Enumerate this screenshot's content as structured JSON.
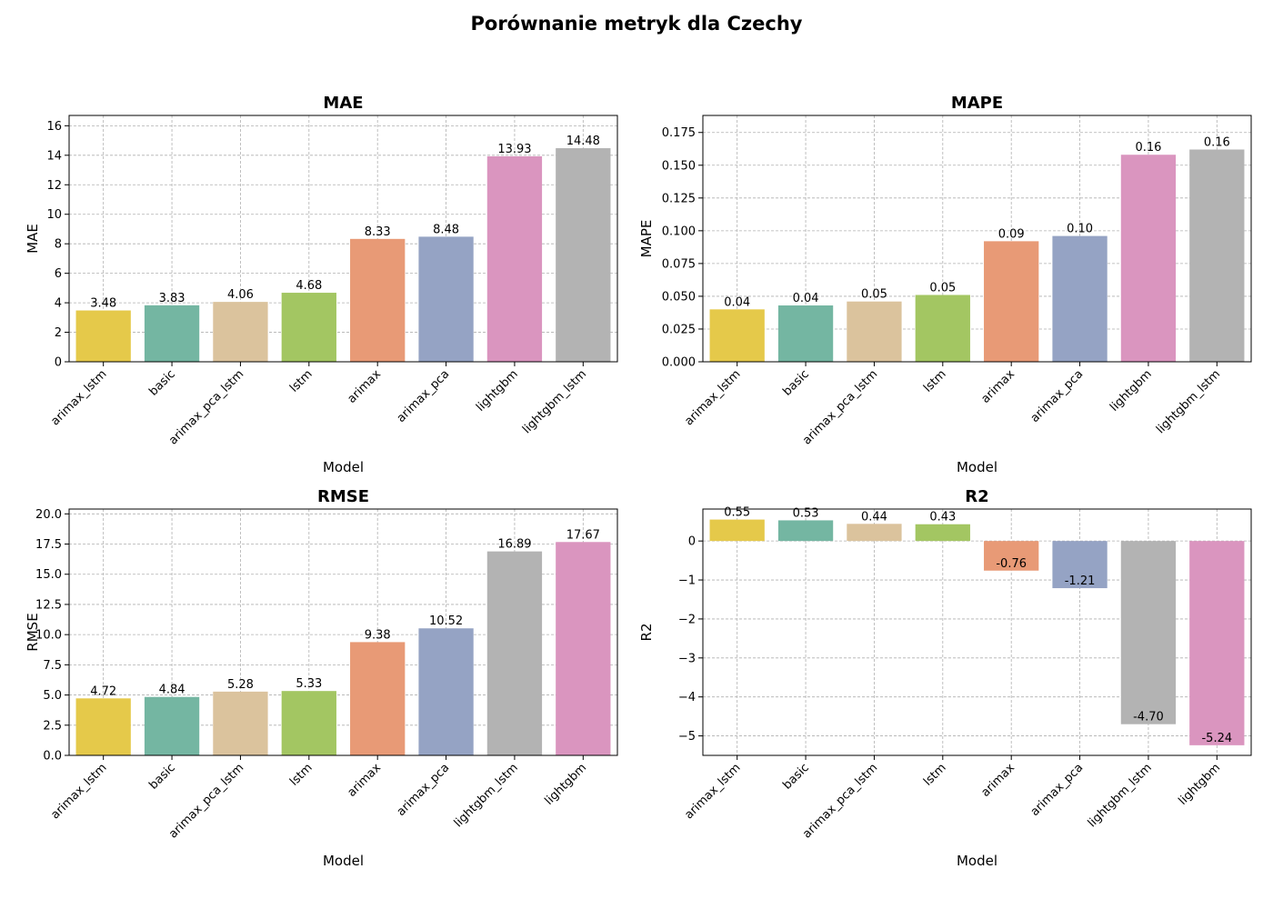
{
  "figure": {
    "title": "Porównanie metryk dla Czechy"
  },
  "chart_data": [
    {
      "type": "bar",
      "title": "MAE",
      "xlabel": "Model",
      "ylabel": "MAE",
      "categories": [
        "arimax_lstm",
        "basic",
        "arimax_pca_lstm",
        "lstm",
        "arimax",
        "arimax_pca",
        "lightgbm",
        "lightgbm_lstm"
      ],
      "values": [
        3.48,
        3.83,
        4.06,
        4.68,
        8.33,
        8.48,
        13.93,
        14.48
      ],
      "labels": [
        "3.48",
        "3.83",
        "4.06",
        "4.68",
        "8.33",
        "8.48",
        "13.93",
        "14.48"
      ],
      "colors": [
        "#e5c94a",
        "#74b6a2",
        "#dbc39d",
        "#a3c662",
        "#e89a76",
        "#95a3c4",
        "#da95bf",
        "#b3b3b3"
      ],
      "ylim": [
        0,
        16.7
      ],
      "yticks": [
        0,
        2,
        4,
        6,
        8,
        10,
        12,
        14,
        16
      ],
      "ytick_labels": [
        "0",
        "2",
        "4",
        "6",
        "8",
        "10",
        "12",
        "14",
        "16"
      ],
      "grid": true
    },
    {
      "type": "bar",
      "title": "MAPE",
      "xlabel": "Model",
      "ylabel": "MAPE",
      "categories": [
        "arimax_lstm",
        "basic",
        "arimax_pca_lstm",
        "lstm",
        "arimax",
        "arimax_pca",
        "lightgbm",
        "lightgbm_lstm"
      ],
      "values": [
        0.04,
        0.043,
        0.046,
        0.051,
        0.092,
        0.096,
        0.158,
        0.162
      ],
      "labels": [
        "0.04",
        "0.04",
        "0.05",
        "0.05",
        "0.09",
        "0.10",
        "0.16",
        "0.16"
      ],
      "colors": [
        "#e5c94a",
        "#74b6a2",
        "#dbc39d",
        "#a3c662",
        "#e89a76",
        "#95a3c4",
        "#da95bf",
        "#b3b3b3"
      ],
      "ylim": [
        0,
        0.188
      ],
      "yticks": [
        0,
        0.025,
        0.05,
        0.075,
        0.1,
        0.125,
        0.15,
        0.175
      ],
      "ytick_labels": [
        "0.000",
        "0.025",
        "0.050",
        "0.075",
        "0.100",
        "0.125",
        "0.150",
        "0.175"
      ],
      "grid": true
    },
    {
      "type": "bar",
      "title": "RMSE",
      "xlabel": "Model",
      "ylabel": "RMSE",
      "categories": [
        "arimax_lstm",
        "basic",
        "arimax_pca_lstm",
        "lstm",
        "arimax",
        "arimax_pca",
        "lightgbm_lstm",
        "lightgbm"
      ],
      "values": [
        4.72,
        4.84,
        5.28,
        5.33,
        9.38,
        10.52,
        16.89,
        17.67
      ],
      "labels": [
        "4.72",
        "4.84",
        "5.28",
        "5.33",
        "9.38",
        "10.52",
        "16.89",
        "17.67"
      ],
      "colors": [
        "#e5c94a",
        "#74b6a2",
        "#dbc39d",
        "#a3c662",
        "#e89a76",
        "#95a3c4",
        "#b3b3b3",
        "#da95bf"
      ],
      "ylim": [
        0,
        20.4
      ],
      "yticks": [
        0,
        2.5,
        5,
        7.5,
        10,
        12.5,
        15,
        17.5,
        20
      ],
      "ytick_labels": [
        "0.0",
        "2.5",
        "5.0",
        "7.5",
        "10.0",
        "12.5",
        "15.0",
        "17.5",
        "20.0"
      ],
      "grid": true
    },
    {
      "type": "bar",
      "title": "R2",
      "xlabel": "Model",
      "ylabel": "R2",
      "categories": [
        "arimax_lstm",
        "basic",
        "arimax_pca_lstm",
        "lstm",
        "arimax",
        "arimax_pca",
        "lightgbm_lstm",
        "lightgbm"
      ],
      "values": [
        0.55,
        0.53,
        0.44,
        0.43,
        -0.76,
        -1.21,
        -4.7,
        -5.24
      ],
      "labels": [
        "0.55",
        "0.53",
        "0.44",
        "0.43",
        "-0.76",
        "-1.21",
        "-4.70",
        "-5.24"
      ],
      "colors": [
        "#e5c94a",
        "#74b6a2",
        "#dbc39d",
        "#a3c662",
        "#e89a76",
        "#95a3c4",
        "#b3b3b3",
        "#da95bf"
      ],
      "ylim": [
        -5.5,
        0.82
      ],
      "yticks": [
        -5,
        -4,
        -3,
        -2,
        -1,
        0
      ],
      "ytick_labels": [
        "−5",
        "−4",
        "−3",
        "−2",
        "−1",
        "0"
      ],
      "grid": true
    }
  ]
}
